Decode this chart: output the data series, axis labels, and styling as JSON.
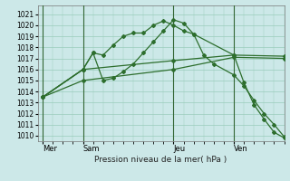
{
  "bg_color": "#cce8e8",
  "grid_color": "#99ccbb",
  "line_color": "#2d6e2d",
  "vline_color": "#336633",
  "xlabel": "Pression niveau de la mer( hPa )",
  "ylim": [
    1009.5,
    1021.8
  ],
  "yticks": [
    1010,
    1011,
    1012,
    1013,
    1014,
    1015,
    1016,
    1017,
    1018,
    1019,
    1020,
    1021
  ],
  "day_labels": [
    "Mer",
    "Sam",
    "Jeu",
    "Ven"
  ],
  "day_positions": [
    0,
    4,
    13,
    19
  ],
  "xlim": [
    -0.5,
    24
  ],
  "series1_x": [
    0,
    4,
    5,
    6,
    7,
    8,
    9,
    10,
    11,
    12,
    13,
    14,
    15,
    16,
    17,
    19,
    20,
    21,
    22,
    23,
    24
  ],
  "series1_y": [
    1013.5,
    1016.0,
    1017.5,
    1017.3,
    1018.2,
    1019.0,
    1019.3,
    1019.3,
    1020.0,
    1020.4,
    1020.0,
    1019.5,
    1019.2,
    1017.3,
    1016.5,
    1015.5,
    1014.5,
    1013.2,
    1012.0,
    1011.0,
    1009.9
  ],
  "series2_x": [
    0,
    4,
    5,
    6,
    7,
    8,
    9,
    10,
    11,
    12,
    13,
    14,
    15,
    19,
    20,
    21,
    22,
    23,
    24
  ],
  "series2_y": [
    1013.5,
    1016.0,
    1017.5,
    1015.0,
    1015.2,
    1015.8,
    1016.5,
    1017.5,
    1018.5,
    1019.5,
    1020.5,
    1020.2,
    1019.2,
    1017.3,
    1014.8,
    1012.8,
    1011.5,
    1010.3,
    1009.8
  ],
  "series3_x": [
    0,
    4,
    13,
    19,
    24
  ],
  "series3_y": [
    1013.5,
    1016.0,
    1016.8,
    1017.3,
    1017.2
  ],
  "series4_x": [
    0,
    4,
    13,
    19,
    24
  ],
  "series4_y": [
    1013.5,
    1015.0,
    1016.0,
    1017.1,
    1017.0
  ]
}
